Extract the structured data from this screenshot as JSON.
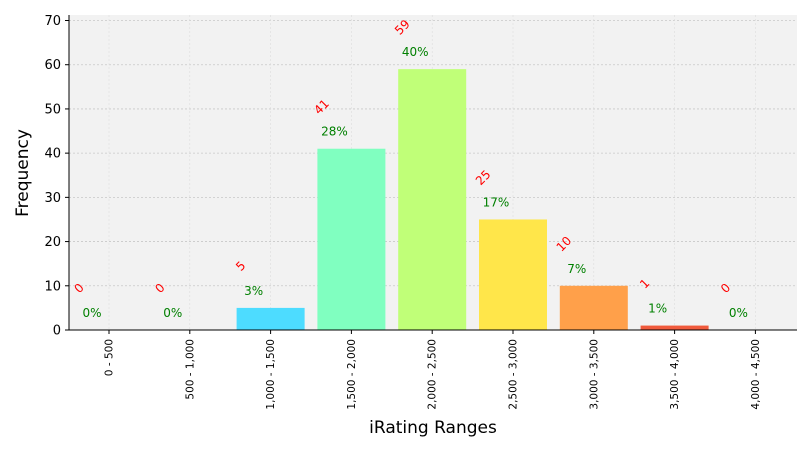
{
  "chart_data": {
    "type": "bar",
    "xlabel": "iRating Ranges",
    "ylabel": "Frequency",
    "ylim": [
      0,
      70
    ],
    "yticks": [
      0,
      10,
      20,
      30,
      40,
      50,
      60,
      70
    ],
    "grid": true,
    "categories": [
      "0 - 500",
      "500 - 1,000",
      "1,000 - 1,500",
      "1,500 - 2,000",
      "2,000 - 2,500",
      "2,500 - 3,000",
      "3,000 - 3,500",
      "3,500 - 4,000",
      "4,000 - 4,500"
    ],
    "values": [
      0,
      0,
      5,
      41,
      59,
      25,
      10,
      1,
      0
    ],
    "count_labels": [
      "0",
      "0",
      "5",
      "41",
      "59",
      "25",
      "10",
      "1",
      "0"
    ],
    "percent_labels": [
      "0%",
      "0%",
      "3%",
      "28%",
      "40%",
      "17%",
      "7%",
      "1%",
      "0%"
    ],
    "colors": [
      "#5050f0",
      "#40a0ff",
      "#4ddcff",
      "#80ffc0",
      "#c0ff78",
      "#ffe64a",
      "#ffa04a",
      "#f05a3c",
      "#a01010"
    ],
    "count_label_color": "#ff0000",
    "percent_label_color": "#008000",
    "plot_background": "#f2f2f2"
  }
}
